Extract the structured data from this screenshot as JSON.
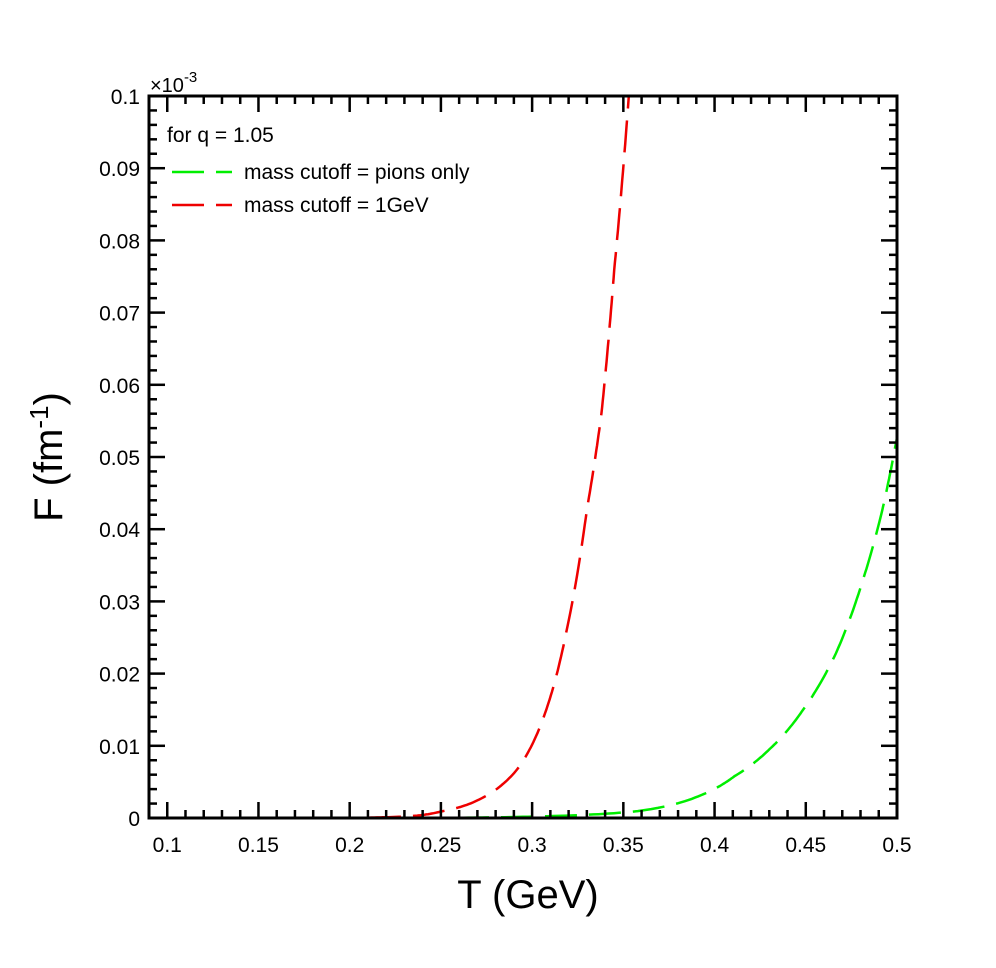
{
  "chart_data": {
    "type": "line",
    "xlabel": "T (GeV)",
    "ylabel": "F (fm",
    "ylabel_sup": "-1",
    "ylabel_close": ")",
    "y_multiplier": "×10",
    "y_multiplier_exp": "-3",
    "xlim": [
      0.09,
      0.5
    ],
    "ylim": [
      0,
      0.1
    ],
    "x_ticks": [
      0.1,
      0.15,
      0.2,
      0.25,
      0.3,
      0.35,
      0.4,
      0.45,
      0.5
    ],
    "x_tick_labels": [
      "0.1",
      "0.15",
      "0.2",
      "0.25",
      "0.3",
      "0.35",
      "0.4",
      "0.45",
      "0.5"
    ],
    "y_ticks": [
      0,
      0.01,
      0.02,
      0.03,
      0.04,
      0.05,
      0.06,
      0.07,
      0.08,
      0.09,
      0.1
    ],
    "y_tick_labels": [
      "0",
      "0.01",
      "0.02",
      "0.03",
      "0.04",
      "0.05",
      "0.06",
      "0.07",
      "0.08",
      "0.09",
      "0.1"
    ],
    "grid": false,
    "legend_title": "for q = 1.05",
    "legend_position": "top-left",
    "series": [
      {
        "name": "mass cutoff = pions only",
        "color": "#00ee00",
        "style": "dashed",
        "x": [
          0.09,
          0.2,
          0.25,
          0.3,
          0.356,
          0.393,
          0.411,
          0.43,
          0.448,
          0.4665,
          0.481,
          0.492,
          0.5
        ],
        "y": [
          0,
          2e-06,
          3e-05,
          0.0002,
          0.0009,
          0.0032,
          0.0058,
          0.0095,
          0.0148,
          0.0228,
          0.0327,
          0.0427,
          0.0527
        ]
      },
      {
        "name": "mass cutoff = 1GeV",
        "color": "#ee0000",
        "style": "dashed",
        "x": [
          0.09,
          0.15,
          0.2,
          0.23,
          0.25,
          0.2735,
          0.292,
          0.3065,
          0.319,
          0.33,
          0.338,
          0.345,
          0.353
        ],
        "y": [
          0,
          1e-06,
          3e-05,
          0.0002,
          0.0009,
          0.0029,
          0.0068,
          0.0141,
          0.0261,
          0.0427,
          0.056,
          0.0759,
          0.1
        ]
      }
    ]
  }
}
